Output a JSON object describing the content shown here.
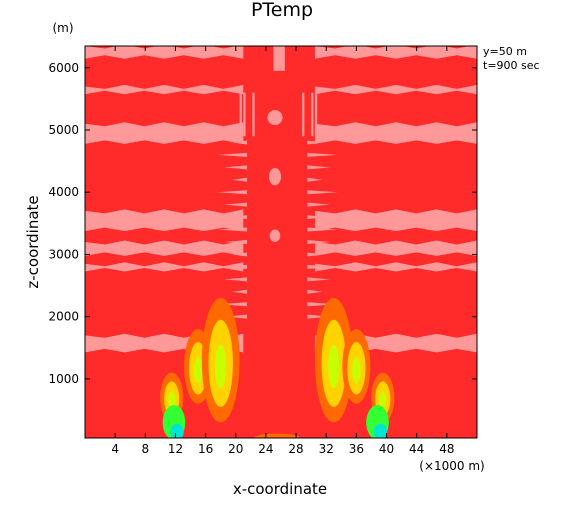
{
  "chart_data": {
    "type": "heatmap",
    "title": "PTemp",
    "xlabel": "x-coordinate",
    "ylabel": "z-coordinate",
    "x_unit": "(×1000 m)",
    "y_unit": "(m)",
    "annotations": [
      "y=50 m",
      "t=900 sec"
    ],
    "xlim": [
      0,
      52
    ],
    "ylim": [
      50,
      6350
    ],
    "x_ticks": [
      4,
      8,
      12,
      16,
      20,
      24,
      28,
      32,
      36,
      40,
      44,
      48
    ],
    "y_ticks": [
      1000,
      2000,
      3000,
      4000,
      5000,
      6000
    ],
    "colors": {
      "background_field": "#ff2a2a",
      "light_band": "#ff9999",
      "orange": "#ff6a00",
      "yellow": "#ffd200",
      "yellow_green": "#c8ff00",
      "green": "#33ff33",
      "cyan": "#00e5d0"
    },
    "bands_z": [
      [
        6170,
        6350
      ],
      [
        5600,
        5700
      ],
      [
        4800,
        5100
      ],
      [
        3400,
        3700
      ],
      [
        3000,
        3200
      ],
      [
        2750,
        2850
      ],
      [
        1450,
        1700
      ]
    ],
    "cores": [
      {
        "x": 11.5,
        "z": 700,
        "rz": 400
      },
      {
        "x": 15.0,
        "z": 1200,
        "rz": 600
      },
      {
        "x": 18.0,
        "z": 1300,
        "rz": 1000
      },
      {
        "x": 33.0,
        "z": 1300,
        "rz": 1000
      },
      {
        "x": 36.0,
        "z": 1200,
        "rz": 600
      },
      {
        "x": 39.5,
        "z": 700,
        "rz": 400
      }
    ]
  }
}
